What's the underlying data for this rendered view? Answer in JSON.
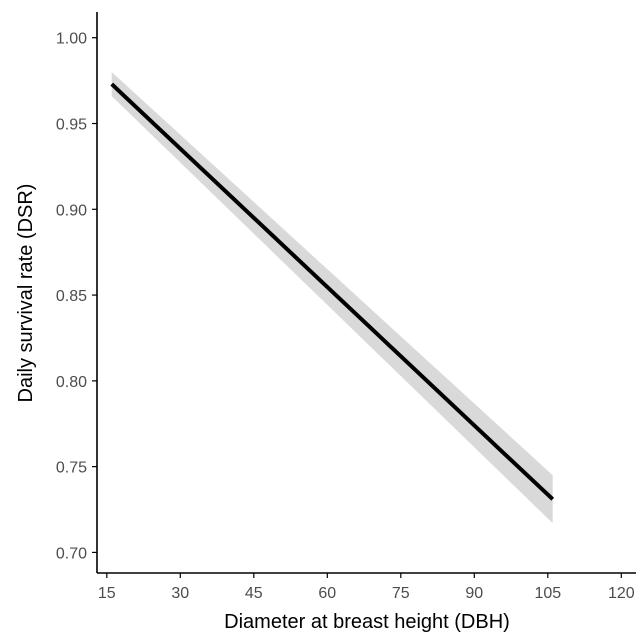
{
  "chart_data": {
    "type": "line",
    "title": "",
    "xlabel": "Diameter at breast height (DBH)",
    "ylabel": "Daily survival rate (DSR)",
    "xlim": [
      13,
      123
    ],
    "ylim": [
      0.688,
      1.015
    ],
    "x_ticks": [
      15,
      30,
      45,
      60,
      75,
      90,
      105,
      120
    ],
    "x_tick_labels": [
      "15",
      "30",
      "45",
      "60",
      "75",
      "90",
      "105",
      "120"
    ],
    "y_ticks": [
      0.7,
      0.75,
      0.8,
      0.85,
      0.9,
      0.95,
      1.0
    ],
    "y_tick_labels": [
      "0.70",
      "0.75",
      "0.80",
      "0.85",
      "0.90",
      "0.95",
      "1.00"
    ],
    "grid": false,
    "legend": "none",
    "series": [
      {
        "x": [
          16,
          106
        ],
        "y": [
          0.973,
          0.731
        ],
        "ci_lower": [
          0.966,
          0.717
        ],
        "ci_upper": [
          0.98,
          0.745
        ]
      }
    ],
    "colors": {
      "line": "#000000",
      "ribbon": "#d9d9d9",
      "axis": "#000000",
      "tick_label": "#4d4d4d"
    }
  }
}
